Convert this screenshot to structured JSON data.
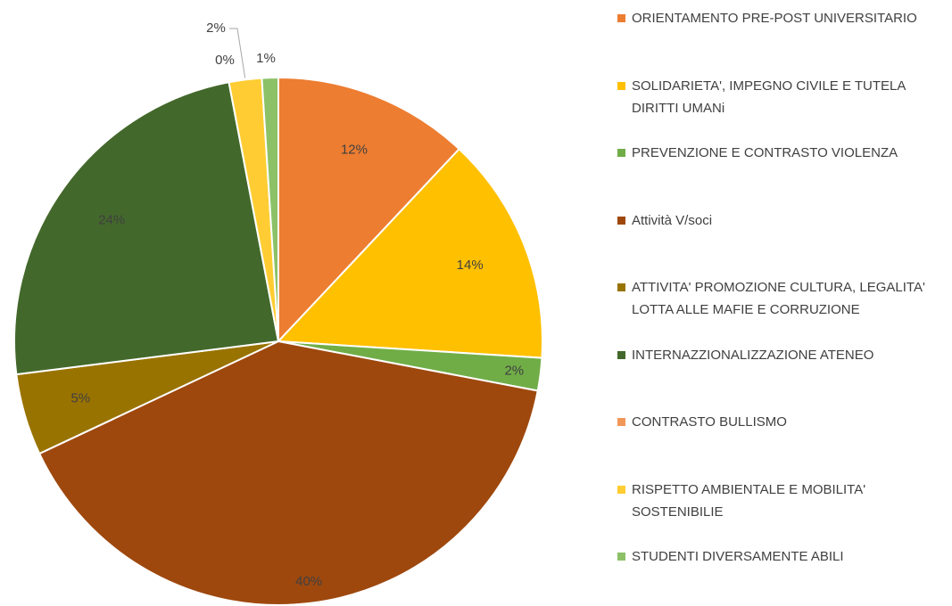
{
  "chart_data": {
    "type": "pie",
    "categories": [
      "ORIENTAMENTO PRE-POST UNIVERSITARIO",
      "SOLIDARIETA', IMPEGNO CIVILE E TUTELA DIRITTI UMANi",
      "PREVENZIONE E CONTRASTO VIOLENZA",
      "Attività V/soci",
      "ATTIVITA' PROMOZIONE CULTURA, LEGALITA' LOTTA ALLE MAFIE E CORRUZIONE",
      "INTERNAZZIONALIZZAZIONE ATENEO",
      "CONTRASTO BULLISMO",
      "RISPETTO AMBIENTALE E MOBILITA' SOSTENIBILIE",
      "STUDENTI DIVERSAMENTE ABILI"
    ],
    "values": [
      12,
      14,
      2,
      40,
      5,
      24,
      0,
      2,
      1
    ],
    "value_labels": [
      "12%",
      "14%",
      "2%",
      "40%",
      "5%",
      "24%",
      "0%",
      "2%",
      "1%"
    ],
    "colors": [
      "#ed7d31",
      "#ffc000",
      "#70ad47",
      "#9e480e",
      "#997300",
      "#43682b",
      "#f1975a",
      "#ffcd33",
      "#8cc168"
    ],
    "legend": "right"
  }
}
